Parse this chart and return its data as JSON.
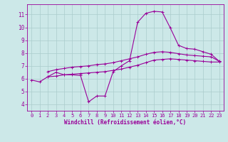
{
  "background_color": "#cce8e8",
  "line_color": "#990099",
  "grid_color": "#aacccc",
  "xlabel": "Windchill (Refroidissement éolien,°C)",
  "ylabel_ticks": [
    4,
    5,
    6,
    7,
    8,
    9,
    10,
    11
  ],
  "xlim": [
    -0.5,
    23.5
  ],
  "ylim": [
    3.5,
    11.8
  ],
  "xticks": [
    0,
    1,
    2,
    3,
    4,
    5,
    6,
    7,
    8,
    9,
    10,
    11,
    12,
    13,
    14,
    15,
    16,
    17,
    18,
    19,
    20,
    21,
    22,
    23
  ],
  "curve1_x": [
    0,
    1,
    2,
    3,
    4,
    5,
    6,
    7,
    8,
    9,
    10,
    11,
    12,
    13,
    14,
    15,
    16,
    17,
    18,
    19,
    20,
    21,
    22,
    23
  ],
  "curve1_y": [
    5.9,
    5.75,
    6.15,
    6.5,
    6.3,
    6.3,
    6.25,
    4.2,
    4.65,
    4.65,
    6.55,
    7.0,
    7.4,
    10.4,
    11.1,
    11.25,
    11.2,
    9.95,
    8.6,
    8.35,
    8.3,
    8.1,
    7.9,
    7.35
  ],
  "curve2_x": [
    2,
    3,
    4,
    5,
    6,
    7,
    8,
    9,
    10,
    11,
    12,
    13,
    14,
    15,
    16,
    17,
    18,
    19,
    20,
    21,
    22,
    23
  ],
  "curve2_y": [
    6.55,
    6.7,
    6.8,
    6.9,
    6.95,
    7.0,
    7.1,
    7.15,
    7.25,
    7.4,
    7.55,
    7.7,
    7.9,
    8.05,
    8.1,
    8.05,
    7.95,
    7.85,
    7.8,
    7.75,
    7.7,
    7.35
  ],
  "curve3_x": [
    2,
    3,
    4,
    5,
    6,
    7,
    8,
    9,
    10,
    11,
    12,
    13,
    14,
    15,
    16,
    17,
    18,
    19,
    20,
    21,
    22,
    23
  ],
  "curve3_y": [
    6.15,
    6.2,
    6.3,
    6.35,
    6.4,
    6.45,
    6.5,
    6.55,
    6.65,
    6.75,
    6.9,
    7.05,
    7.25,
    7.45,
    7.5,
    7.55,
    7.5,
    7.45,
    7.4,
    7.35,
    7.3,
    7.3
  ]
}
